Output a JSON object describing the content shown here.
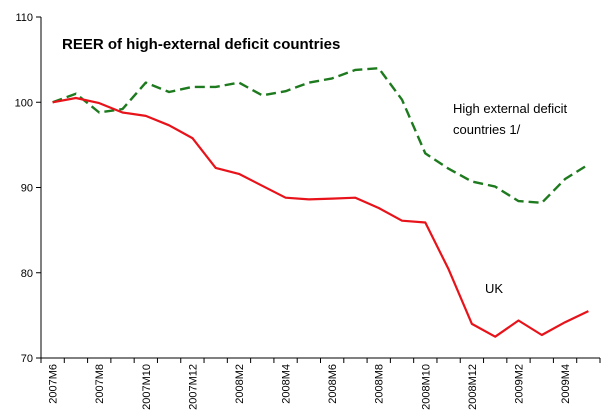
{
  "chart_data": {
    "type": "line",
    "title": "REER of high-external deficit countries",
    "xlabel": "",
    "ylabel": "",
    "ylim": [
      70,
      110
    ],
    "yticks": [
      70,
      80,
      90,
      100,
      110
    ],
    "x": [
      "2007M6",
      "2007M7",
      "2007M8",
      "2007M9",
      "2007M10",
      "2007M11",
      "2007M12",
      "2008M1",
      "2008M2",
      "2008M3",
      "2008M4",
      "2008M5",
      "2008M6",
      "2008M7",
      "2008M8",
      "2008M9",
      "2008M10",
      "2008M11",
      "2008M12",
      "2009M1",
      "2009M2",
      "2009M3",
      "2009M4",
      "2009M5"
    ],
    "xtick_labels": [
      "2007M6",
      "2007M8",
      "2007M10",
      "2007M12",
      "2008M2",
      "2008M4",
      "2008M6",
      "2008M8",
      "2008M10",
      "2008M12",
      "2009M2",
      "2009M4"
    ],
    "grid": false,
    "series": [
      {
        "name": "High external deficit countries 1/",
        "color": "#1e7a1e",
        "style": "dashed",
        "values": [
          100.0,
          101.0,
          98.8,
          99.2,
          102.3,
          101.2,
          101.8,
          101.8,
          102.3,
          100.8,
          101.3,
          102.3,
          102.8,
          103.8,
          104.0,
          100.3,
          94.0,
          92.2,
          90.7,
          90.1,
          88.4,
          88.2,
          91.0,
          92.7
        ]
      },
      {
        "name": "UK",
        "color": "#e8131a",
        "style": "solid",
        "values": [
          100.0,
          100.5,
          99.9,
          98.8,
          98.4,
          97.3,
          95.8,
          92.3,
          91.6,
          90.2,
          88.8,
          88.6,
          88.7,
          88.8,
          87.6,
          86.1,
          85.9,
          80.4,
          74.0,
          72.5,
          74.4,
          72.7,
          74.2,
          75.5
        ]
      }
    ],
    "annotations": [
      {
        "text_lines": [
          "High external deficit",
          "countries 1/"
        ],
        "series": 0
      },
      {
        "text_lines": [
          "UK"
        ],
        "series": 1
      }
    ]
  }
}
